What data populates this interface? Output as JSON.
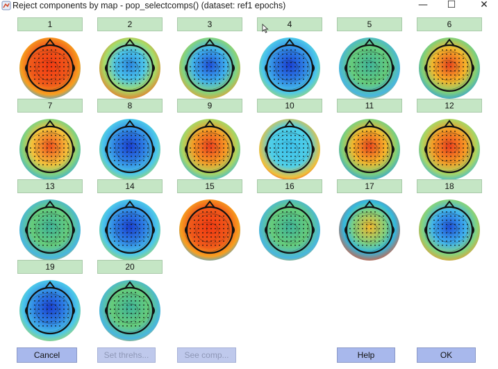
{
  "window": {
    "title": "Reject components by map - pop_selectcomps() (dataset: ref1 epochs)",
    "minimize_glyph": "—",
    "maximize_glyph": "☐",
    "close_glyph": "✕"
  },
  "components": [
    {
      "label": "1",
      "scheme": "red"
    },
    {
      "label": "2",
      "scheme": "diagonal"
    },
    {
      "label": "3",
      "scheme": "blueTop"
    },
    {
      "label": "4",
      "scheme": "blueCenter"
    },
    {
      "label": "5",
      "scheme": "greenFlat"
    },
    {
      "label": "6",
      "scheme": "redTop"
    },
    {
      "label": "7",
      "scheme": "redLeft"
    },
    {
      "label": "8",
      "scheme": "blueCenter"
    },
    {
      "label": "9",
      "scheme": "redCenter"
    },
    {
      "label": "10",
      "scheme": "cyanLeftRed"
    },
    {
      "label": "11",
      "scheme": "redTop"
    },
    {
      "label": "12",
      "scheme": "redCenter"
    },
    {
      "label": "13",
      "scheme": "greenFlat"
    },
    {
      "label": "14",
      "scheme": "blueCenter"
    },
    {
      "label": "15",
      "scheme": "red"
    },
    {
      "label": "16",
      "scheme": "greenFlat"
    },
    {
      "label": "17",
      "scheme": "yellowTop"
    },
    {
      "label": "18",
      "scheme": "blueTop"
    },
    {
      "label": "19",
      "scheme": "blueCenter"
    },
    {
      "label": "20",
      "scheme": "greenFlat"
    }
  ],
  "buttons": {
    "cancel": "Cancel",
    "set_thresh": "Set threhs...",
    "see_comp": "See comp...",
    "help": "Help",
    "ok": "OK"
  },
  "colors": {
    "label_bg": "#c5e6c5",
    "button_bg": "#a8b8ec",
    "button_disabled_text": "#8e97b6"
  }
}
